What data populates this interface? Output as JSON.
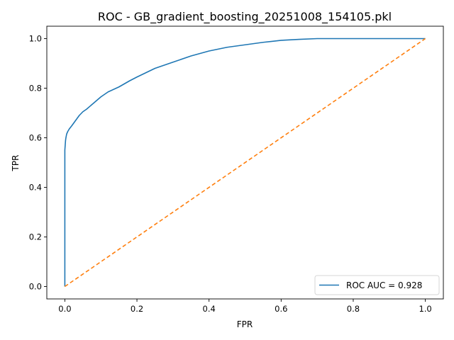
{
  "chart_data": {
    "type": "line",
    "title": "ROC - GB_gradient_boosting_20251008_154105.pkl",
    "xlabel": "FPR",
    "ylabel": "TPR",
    "xlim": [
      -0.05,
      1.05
    ],
    "ylim": [
      -0.05,
      1.05
    ],
    "x_ticks": [
      "0.0",
      "0.2",
      "0.4",
      "0.6",
      "0.8",
      "1.0"
    ],
    "y_ticks": [
      "0.0",
      "0.2",
      "0.4",
      "0.6",
      "0.8",
      "1.0"
    ],
    "grid": false,
    "legend_position": "lower-right",
    "series": [
      {
        "name": "ROC AUC = 0.928",
        "color": "#1f77b4",
        "style": "solid",
        "x": [
          0.0,
          0.0,
          0.0,
          0.0,
          0.001,
          0.002,
          0.003,
          0.005,
          0.008,
          0.012,
          0.02,
          0.03,
          0.04,
          0.05,
          0.06,
          0.08,
          0.1,
          0.12,
          0.15,
          0.18,
          0.2,
          0.25,
          0.3,
          0.35,
          0.4,
          0.45,
          0.5,
          0.55,
          0.6,
          0.65,
          0.7,
          0.8,
          0.9,
          1.0
        ],
        "y": [
          0.0,
          0.3,
          0.5,
          0.55,
          0.57,
          0.59,
          0.6,
          0.615,
          0.625,
          0.635,
          0.65,
          0.67,
          0.69,
          0.705,
          0.715,
          0.74,
          0.765,
          0.785,
          0.805,
          0.83,
          0.845,
          0.88,
          0.905,
          0.93,
          0.95,
          0.965,
          0.975,
          0.985,
          0.993,
          0.997,
          1.0,
          1.0,
          1.0,
          1.0
        ]
      },
      {
        "name": "",
        "color": "#ff7f0e",
        "style": "dashed",
        "x": [
          0.0,
          1.0
        ],
        "y": [
          0.0,
          1.0
        ]
      }
    ]
  }
}
